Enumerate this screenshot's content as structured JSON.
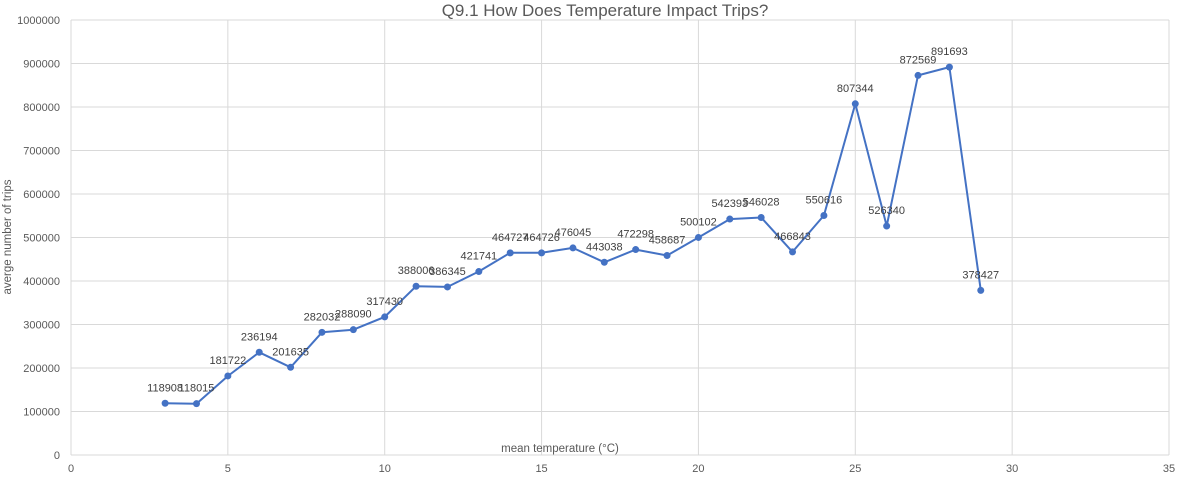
{
  "chart_data": {
    "type": "line",
    "title": "Q9.1 How Does Temperature Impact Trips?",
    "xlabel": "mean temperature (°C)",
    "ylabel": "averge number of trips",
    "xlim": [
      0,
      35
    ],
    "ylim": [
      0,
      1000000
    ],
    "x_ticks": [
      0,
      5,
      10,
      15,
      20,
      25,
      30,
      35
    ],
    "y_ticks": [
      0,
      100000,
      200000,
      300000,
      400000,
      500000,
      600000,
      700000,
      800000,
      900000,
      1000000
    ],
    "grid": true,
    "legend": "none",
    "series": [
      {
        "color": "#4472C4",
        "x": [
          3,
          4,
          5,
          6,
          7,
          8,
          9,
          10,
          11,
          12,
          13,
          14,
          15,
          16,
          17,
          18,
          19,
          20,
          21,
          22,
          23,
          24,
          25,
          26,
          27,
          28,
          29
        ],
        "values": [
          118908,
          118015,
          181722,
          236194,
          201635,
          282032,
          288090,
          317430,
          388006,
          386345,
          421741,
          464727,
          464726,
          476045,
          443038,
          472298,
          458687,
          500102,
          542393,
          546028,
          466843,
          550616,
          807344,
          526340,
          872569,
          891693,
          378427
        ],
        "data_labels": [
          "118908",
          "118015",
          "181722",
          "236194",
          "201635",
          "282032",
          "288090",
          "317430",
          "388006",
          "386345",
          "421741",
          "464727",
          "464726",
          "476045",
          "443038",
          "472298",
          "458687",
          "500102",
          "542393",
          "546028",
          "466843",
          "550616",
          "807344",
          "526340",
          "872569",
          "891693",
          "378427"
        ]
      }
    ]
  }
}
